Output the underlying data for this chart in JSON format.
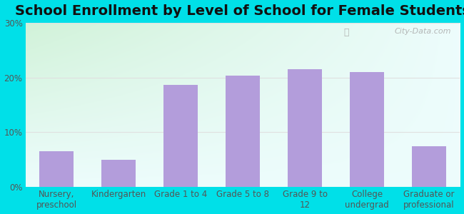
{
  "title": "School Enrollment by Level of School for Female Students",
  "categories": [
    "Nursery,\npreschool",
    "Kindergarten",
    "Grade 1 to 4",
    "Grade 5 to 8",
    "Grade 9 to\n12",
    "College\nundergrad",
    "Graduate or\nprofessional"
  ],
  "values": [
    6.5,
    5.0,
    18.7,
    20.3,
    21.5,
    21.0,
    7.5
  ],
  "bar_color": "#b39ddb",
  "ylim": [
    0,
    30
  ],
  "yticks": [
    0,
    10,
    20,
    30
  ],
  "ytick_labels": [
    "0%",
    "10%",
    "20%",
    "30%"
  ],
  "background_outer": "#00e0e8",
  "grid_color": "#e0e0e0",
  "title_fontsize": 14,
  "tick_fontsize": 8.5,
  "watermark": "City-Data.com"
}
